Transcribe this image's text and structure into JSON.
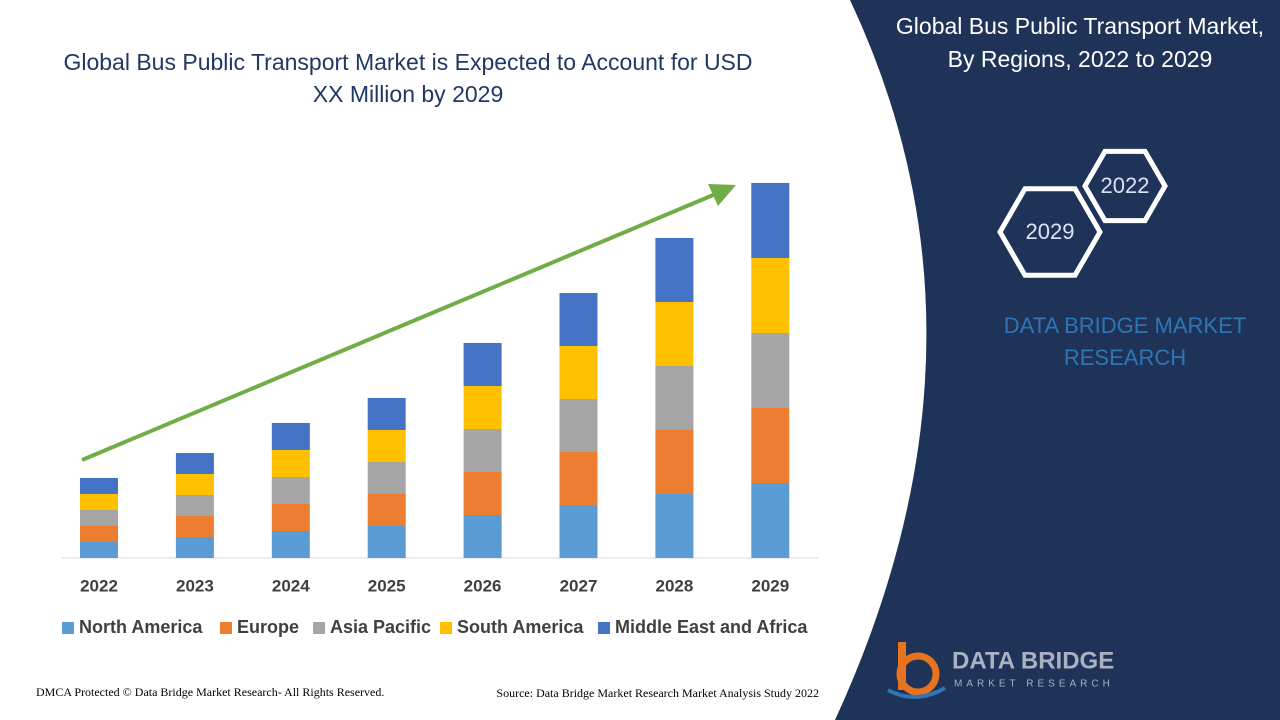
{
  "chart_data": {
    "type": "stacked-bar",
    "title": "Global Bus Public Transport Market is Expected to Account for USD XX Million by 2029",
    "categories": [
      "2022",
      "2023",
      "2024",
      "2025",
      "2026",
      "2027",
      "2028",
      "2029"
    ],
    "series": [
      {
        "name": "North America",
        "color": "#5b9bd5",
        "values": [
          16,
          21,
          27,
          32,
          43,
          53,
          64,
          75
        ]
      },
      {
        "name": "Europe",
        "color": "#ed7d31",
        "values": [
          16,
          21,
          27,
          32,
          43,
          53,
          64,
          75
        ]
      },
      {
        "name": "Asia Pacific",
        "color": "#a5a5a5",
        "values": [
          16,
          21,
          27,
          32,
          43,
          53,
          64,
          75
        ]
      },
      {
        "name": "South America",
        "color": "#ffc000",
        "values": [
          16,
          21,
          27,
          32,
          43,
          53,
          64,
          75
        ]
      },
      {
        "name": "Middle East and Africa",
        "color": "#4472c4",
        "values": [
          16,
          21,
          27,
          32,
          43,
          53,
          64,
          75
        ]
      }
    ],
    "ylim": [
      0,
      400
    ],
    "legend": "bottom"
  },
  "panel": {
    "title": "Global Bus Public Transport Market, By Regions, 2022 to 2029",
    "hex_years": [
      "2022",
      "2029"
    ],
    "brand": "DATA BRIDGE MARKET RESEARCH"
  },
  "logo": {
    "name": "DATA BRIDGE",
    "tagline": "MARKET RESEARCH"
  },
  "footer": {
    "copyright": "DMCA Protected © Data Bridge Market Research- All Rights Reserved.",
    "source": "Source: Data Bridge Market Research Market Analysis Study 2022"
  }
}
